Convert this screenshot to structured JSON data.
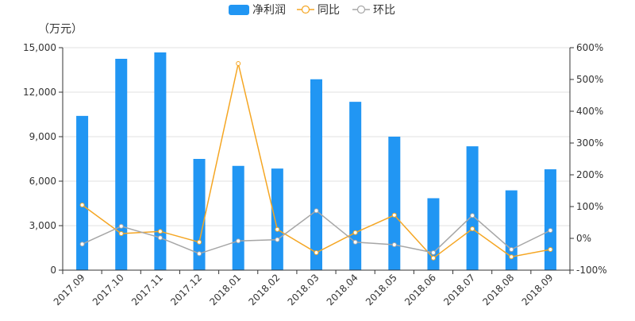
{
  "chart_data": {
    "type": "bar",
    "title": "",
    "y_unit_label": "（万元）",
    "legend": {
      "position": "top-center",
      "items": [
        {
          "label": "净利润",
          "marker": "bar",
          "color": "#2196f3"
        },
        {
          "label": "同比",
          "marker": "line-circle",
          "color": "#f5a623"
        },
        {
          "label": "环比",
          "marker": "line-circle",
          "color": "#a6a6a6"
        }
      ]
    },
    "categories": [
      "2017.09",
      "2017.10",
      "2017.11",
      "2017.12",
      "2018.01",
      "2018.02",
      "2018.03",
      "2018.04",
      "2018.05",
      "2018.06",
      "2018.07",
      "2018.08",
      "2018.09"
    ],
    "y_left": {
      "min": 0,
      "max": 15000,
      "ticks": [
        "0",
        "3,000",
        "6,000",
        "9,000",
        "12,000",
        "15,000"
      ],
      "tick_values": [
        0,
        3000,
        6000,
        9000,
        12000,
        15000
      ]
    },
    "y_right": {
      "min": -100,
      "max": 600,
      "ticks": [
        "-100%",
        "0%",
        "100%",
        "200%",
        "300%",
        "400%",
        "500%",
        "600%"
      ],
      "tick_values": [
        -100,
        0,
        100,
        200,
        300,
        400,
        500,
        600
      ]
    },
    "grid": {
      "horizontal": true,
      "color": "#e0e0e0"
    },
    "series": [
      {
        "name": "净利润",
        "axis": "left",
        "kind": "bar",
        "color": "#2196f3",
        "values": [
          10400,
          14250,
          14680,
          7500,
          7030,
          6850,
          12870,
          11350,
          9000,
          4850,
          8350,
          5380,
          6800
        ]
      },
      {
        "name": "同比",
        "axis": "right",
        "kind": "line",
        "color": "#f5a623",
        "values": [
          105,
          15,
          22,
          -12,
          550,
          28,
          -45,
          18,
          73,
          -62,
          30,
          -58,
          -35
        ]
      },
      {
        "name": "环比",
        "axis": "right",
        "kind": "line",
        "color": "#a6a6a6",
        "values": [
          -18,
          38,
          2,
          -48,
          -8,
          -4,
          87,
          -12,
          -20,
          -45,
          72,
          -35,
          25
        ]
      }
    ]
  }
}
